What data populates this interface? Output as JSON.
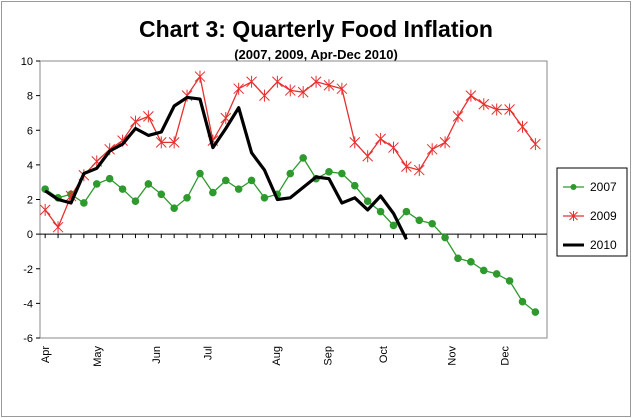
{
  "chart_data": {
    "type": "line",
    "title": "Chart 3: Quarterly Food Inflation",
    "subtitle": "(2007, 2009, Apr-Dec 2010)",
    "ylim": [
      -6,
      10
    ],
    "yticks": [
      -6,
      -4,
      -2,
      0,
      2,
      4,
      6,
      8,
      10
    ],
    "grid": "none",
    "legend_position": "right",
    "x_tick_labels": [
      "Apr",
      "May",
      "Jun",
      "Jul",
      "Aug",
      "Sep",
      "Oct",
      "Nov",
      "Dec"
    ],
    "x_tick_positions": [
      0,
      4,
      8.6,
      12.6,
      17.9,
      21.9,
      26.2,
      31.5,
      35.6
    ],
    "x_range": [
      -0.4,
      38.9
    ],
    "series": [
      {
        "name": "2007",
        "color": "#2e9a2e",
        "marker": "circle",
        "values": [
          2.6,
          2.1,
          2.3,
          1.8,
          2.9,
          3.2,
          2.6,
          1.9,
          2.9,
          2.3,
          1.5,
          2.1,
          3.5,
          2.4,
          3.1,
          2.6,
          3.1,
          2.1,
          2.3,
          3.5,
          4.4,
          3.2,
          3.6,
          3.5,
          2.8,
          1.9,
          1.3,
          0.5,
          1.3,
          0.8,
          0.6,
          -0.2,
          -1.4,
          -1.6,
          -2.1,
          -2.3,
          -2.7,
          -3.9,
          -4.5
        ]
      },
      {
        "name": "2009",
        "color": "#e83030",
        "marker": "asterisk",
        "values": [
          1.4,
          0.4,
          2.2,
          3.4,
          4.2,
          4.9,
          5.4,
          6.5,
          6.8,
          5.3,
          5.3,
          8.0,
          9.1,
          5.4,
          6.7,
          8.4,
          8.8,
          8.0,
          8.8,
          8.3,
          8.2,
          8.8,
          8.6,
          8.4,
          5.3,
          4.5,
          5.5,
          5.0,
          3.9,
          3.7,
          4.9,
          5.3,
          6.8,
          8.0,
          7.5,
          7.2,
          7.2,
          6.2,
          5.2
        ]
      },
      {
        "name": "2010",
        "color": "#000000",
        "marker": "none",
        "values": [
          2.5,
          2.0,
          1.8,
          3.5,
          3.8,
          4.8,
          5.2,
          6.1,
          5.7,
          5.9,
          7.4,
          7.9,
          7.8,
          5.0,
          6.1,
          7.3,
          4.7,
          3.7,
          2.0,
          2.1,
          2.7,
          3.3,
          3.2,
          1.8,
          2.1,
          1.4,
          2.2,
          1.2,
          -0.3
        ]
      }
    ]
  }
}
